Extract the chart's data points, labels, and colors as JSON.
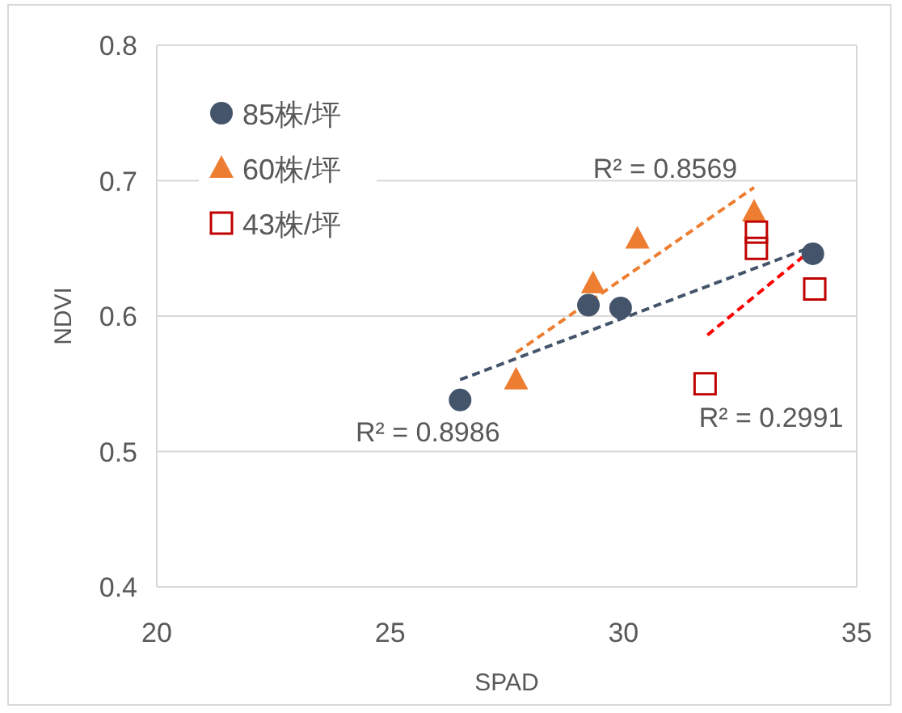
{
  "chart_data": {
    "type": "scatter",
    "xlabel": "SPAD",
    "ylabel": "NDVI",
    "xlim": [
      20,
      35
    ],
    "xticks": [
      20,
      25,
      30,
      35
    ],
    "ylim": [
      0.4,
      0.8
    ],
    "yticks": [
      0.4,
      0.5,
      0.6,
      0.7,
      0.8
    ],
    "grid": "y",
    "legend": "top left",
    "series": [
      {
        "name": "85株/坪",
        "color": "#44546a",
        "marker": "circle",
        "x": [
          26.5,
          29.25,
          29.94,
          34.06
        ],
        "values": [
          0.538,
          0.608,
          0.606,
          0.646
        ]
      },
      {
        "name": "60株/坪",
        "color": "#ed7d31",
        "marker": "triangle",
        "x": [
          27.7,
          29.35,
          30.3,
          32.8
        ],
        "values": [
          0.553,
          0.624,
          0.657,
          0.677
        ]
      },
      {
        "name": "43株/坪",
        "color": "#c00000",
        "marker": "square",
        "x": [
          31.75,
          32.85,
          32.85,
          34.1
        ],
        "values": [
          0.55,
          0.662,
          0.65,
          0.62
        ]
      },
      {
        "type": "line",
        "color": "#44546a",
        "line_style": "dashed",
        "x": [
          26.5,
          34.1
        ],
        "values": [
          0.553,
          0.652
        ]
      },
      {
        "type": "line",
        "color": "#ed7d31",
        "line_style": "dashed",
        "x": [
          27.7,
          32.8
        ],
        "values": [
          0.573,
          0.695
        ]
      },
      {
        "type": "line",
        "color": "#ff0000",
        "line_style": "dashed",
        "x": [
          31.8,
          34.1
        ],
        "values": [
          0.586,
          0.651
        ]
      }
    ],
    "annotations": [
      "R² = 0.8986",
      "R² = 0.8569",
      "R² = 0.2991"
    ]
  }
}
